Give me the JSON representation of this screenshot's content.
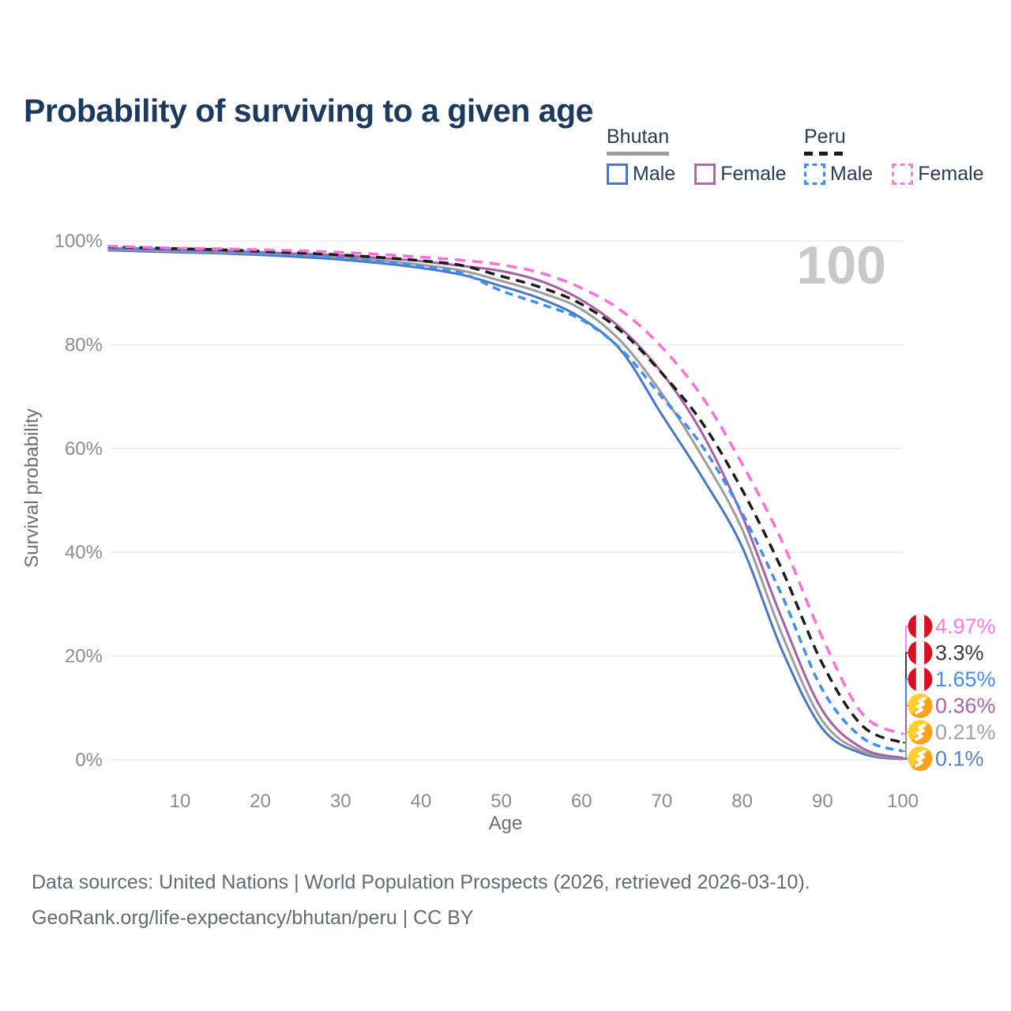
{
  "page": {
    "title": "Probability of surviving to a given age"
  },
  "watermark": "100",
  "legend": {
    "groups": [
      {
        "name": "Bhutan",
        "underline_style": "solid",
        "underline_color": "#9d9d9d",
        "items": [
          {
            "label": "Male",
            "color": "#4a77c4",
            "dash": false
          },
          {
            "label": "Female",
            "color": "#b266ae",
            "dash": false
          }
        ]
      },
      {
        "name": "Peru",
        "underline_style": "dashed",
        "underline_color": "#1b1b1b",
        "items": [
          {
            "label": "Male",
            "color": "#3f8ef2",
            "dash": true
          },
          {
            "label": "Female",
            "color": "#ff7bdf",
            "dash": true
          }
        ]
      }
    ]
  },
  "chart_data": {
    "type": "line",
    "title": "Probability of surviving to a given age",
    "xlabel": "Age",
    "ylabel": "Survival probability",
    "xlim": [
      0,
      100
    ],
    "ylim": [
      0,
      100
    ],
    "grid": "horizontal",
    "xticks": [
      "10",
      "20",
      "30",
      "40",
      "50",
      "60",
      "70",
      "80",
      "90",
      "100"
    ],
    "xtick_values": [
      10,
      20,
      30,
      40,
      50,
      60,
      70,
      80,
      90,
      100
    ],
    "yticks": [
      "0%",
      "20%",
      "40%",
      "60%",
      "80%",
      "100%"
    ],
    "ytick_values": [
      0,
      20,
      40,
      60,
      80,
      100
    ],
    "age_counter": "100",
    "x": [
      1,
      5,
      10,
      15,
      20,
      25,
      30,
      35,
      40,
      45,
      50,
      55,
      60,
      65,
      70,
      75,
      80,
      85,
      90,
      95,
      100
    ],
    "series": [
      {
        "name": "Peru Female",
        "color": "#ff6fd8",
        "dash": "13 9",
        "width": 3.5,
        "end_label": "4.97%",
        "end_label_color": "#ff7bdc",
        "flag": "peru",
        "values": [
          99.0,
          98.8,
          98.6,
          98.5,
          98.3,
          98.1,
          97.8,
          97.4,
          96.9,
          96.3,
          95.4,
          93.8,
          90.9,
          86.5,
          79.5,
          70.0,
          57.0,
          42.0,
          23.5,
          8.8,
          4.97
        ]
      },
      {
        "name": "Peru",
        "color": "#1b1b1b",
        "dash": "12 8",
        "width": 3.5,
        "end_label": "3.3%",
        "end_label_color": "#3a3a3a",
        "flag": "peru",
        "values": [
          98.9,
          98.7,
          98.5,
          98.3,
          98.0,
          97.7,
          97.3,
          96.8,
          96.2,
          95.3,
          93.2,
          91.0,
          87.8,
          82.5,
          74.5,
          65.0,
          52.0,
          36.5,
          18.5,
          6.5,
          3.3
        ]
      },
      {
        "name": "Peru Male",
        "color": "#3f8ef2",
        "dash": "10 7",
        "width": 3.5,
        "end_label": "1.65%",
        "end_label_color": "#4a8cf0",
        "flag": "peru",
        "values": [
          98.8,
          98.5,
          98.3,
          98.1,
          97.8,
          97.3,
          96.7,
          96.0,
          95.1,
          93.8,
          90.4,
          87.8,
          84.8,
          79.0,
          69.9,
          60.5,
          47.5,
          31.5,
          13.5,
          4.2,
          1.65
        ]
      },
      {
        "name": "Bhutan Female",
        "color": "#a75fa6",
        "dash": null,
        "width": 3,
        "end_label": "0.36%",
        "end_label_color": "#ae65a8",
        "flag": "bhutan",
        "values": [
          98.6,
          98.4,
          98.2,
          98.0,
          97.8,
          97.5,
          97.2,
          96.7,
          96.1,
          95.2,
          94.2,
          92.2,
          88.6,
          83.0,
          74.6,
          63.0,
          47.0,
          27.0,
          9.5,
          2.2,
          0.36
        ]
      },
      {
        "name": "Bhutan",
        "color": "#9d9d9d",
        "dash": null,
        "width": 3,
        "end_label": "0.21%",
        "end_label_color": "#a2a2a2",
        "flag": "bhutan",
        "values": [
          98.4,
          98.2,
          98.0,
          97.8,
          97.6,
          97.3,
          96.8,
          96.2,
          95.4,
          94.3,
          92.3,
          90.0,
          86.8,
          80.5,
          70.6,
          58.5,
          44.4,
          24.0,
          7.5,
          1.6,
          0.21
        ]
      },
      {
        "name": "Bhutan Male",
        "color": "#4a77c4",
        "dash": null,
        "width": 3,
        "end_label": "0.1%",
        "end_label_color": "#5c80c6",
        "flag": "bhutan",
        "values": [
          98.2,
          98.0,
          97.8,
          97.6,
          97.3,
          96.9,
          96.4,
          95.7,
          94.8,
          93.5,
          91.3,
          88.8,
          85.1,
          78.7,
          66.5,
          54.5,
          41.0,
          21.0,
          6.0,
          1.2,
          0.1
        ]
      }
    ],
    "flag_colors": {
      "peru_red": "#d91023",
      "peru_white": "#f5f5f5",
      "bhutan_yellow": "#ffcf2e",
      "bhutan_orange": "#ffa01e"
    }
  },
  "footer": {
    "line1": "Data sources: United Nations | World Population Prospects (2026, retrieved 2026-03-10).",
    "line2": "GeoRank.org/life-expectancy/bhutan/peru | CC BY"
  }
}
